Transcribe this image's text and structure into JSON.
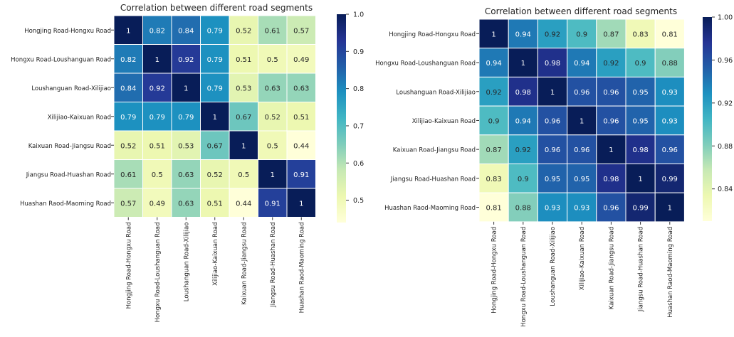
{
  "chart_data": [
    {
      "type": "heatmap",
      "title": "Correlation between different road segments",
      "xlabel": "",
      "ylabel": "",
      "rows": [
        "Hongjing Road-Hongxu Road",
        "Hongxu Road-Loushanguan Road",
        "Loushanguan Road-Xilijiao",
        "Xilijiao-Kaixuan Road",
        "Kaixuan Road-Jiangsu Road",
        "Jiangsu Road-Huashan Road",
        "Huashan Raod-Maoming Road"
      ],
      "columns": [
        "Hongjing Road-Hongxu Road",
        "Hongxu Road-Loushanguan Road",
        "Loushanguan Road-Xilijiao",
        "Xilijiao-Kaixuan Road",
        "Kaixuan Road-Jiangsu Road",
        "Jiangsu Road-Huashan Road",
        "Huashan Raod-Maoming Road"
      ],
      "values": [
        [
          1,
          0.82,
          0.84,
          0.79,
          0.52,
          0.61,
          0.57
        ],
        [
          0.82,
          1,
          0.92,
          0.79,
          0.51,
          0.5,
          0.49
        ],
        [
          0.84,
          0.92,
          1,
          0.79,
          0.53,
          0.63,
          0.63
        ],
        [
          0.79,
          0.79,
          0.79,
          1,
          0.67,
          0.52,
          0.51
        ],
        [
          0.52,
          0.51,
          0.53,
          0.67,
          1,
          0.5,
          0.44
        ],
        [
          0.61,
          0.5,
          0.63,
          0.52,
          0.5,
          1,
          0.91
        ],
        [
          0.57,
          0.49,
          0.63,
          0.51,
          0.44,
          0.91,
          1
        ]
      ],
      "colorbar": {
        "range": [
          0.44,
          1.0
        ],
        "ticks": [
          "0.5",
          "0.6",
          "0.7",
          "0.8",
          "0.9",
          "1.0"
        ]
      },
      "colormap": "YlGnBu",
      "grid": true
    },
    {
      "type": "heatmap",
      "title": "Correlation between different road segments",
      "xlabel": "",
      "ylabel": "",
      "rows": [
        "Hongjing Road-Hongxu Road",
        "Hongxu Road-Loushanguan Road",
        "Loushanguan Road-Xilijiao",
        "Xilijiao-Kaixuan Road",
        "Kaixuan Road-Jiangsu Road",
        "Jiangsu Road-Huashan Road",
        "Huashan Raod-Maoming Road"
      ],
      "columns": [
        "Hongjing Road-Hongxu Road",
        "Hongxu Road-Loushanguan Road",
        "Loushanguan Road-Xilijiao",
        "Xilijiao-Kaixuan Road",
        "Kaixuan Road-Jiangsu Road",
        "Jiangsu Road-Huashan Road",
        "Huashan Raod-Maoming Road"
      ],
      "values": [
        [
          1,
          0.94,
          0.92,
          0.9,
          0.87,
          0.83,
          0.81
        ],
        [
          0.94,
          1,
          0.98,
          0.94,
          0.92,
          0.9,
          0.88
        ],
        [
          0.92,
          0.98,
          1,
          0.96,
          0.96,
          0.95,
          0.93
        ],
        [
          0.9,
          0.94,
          0.96,
          1,
          0.96,
          0.95,
          0.93
        ],
        [
          0.87,
          0.92,
          0.96,
          0.96,
          1,
          0.98,
          0.96
        ],
        [
          0.83,
          0.9,
          0.95,
          0.95,
          0.98,
          1,
          0.99
        ],
        [
          0.81,
          0.88,
          0.93,
          0.93,
          0.96,
          0.99,
          1
        ]
      ],
      "colorbar": {
        "range": [
          0.81,
          1.0
        ],
        "ticks": [
          "0.84",
          "0.88",
          "0.92",
          "0.96",
          "1.00"
        ]
      },
      "colormap": "YlGnBu",
      "grid": true
    }
  ]
}
